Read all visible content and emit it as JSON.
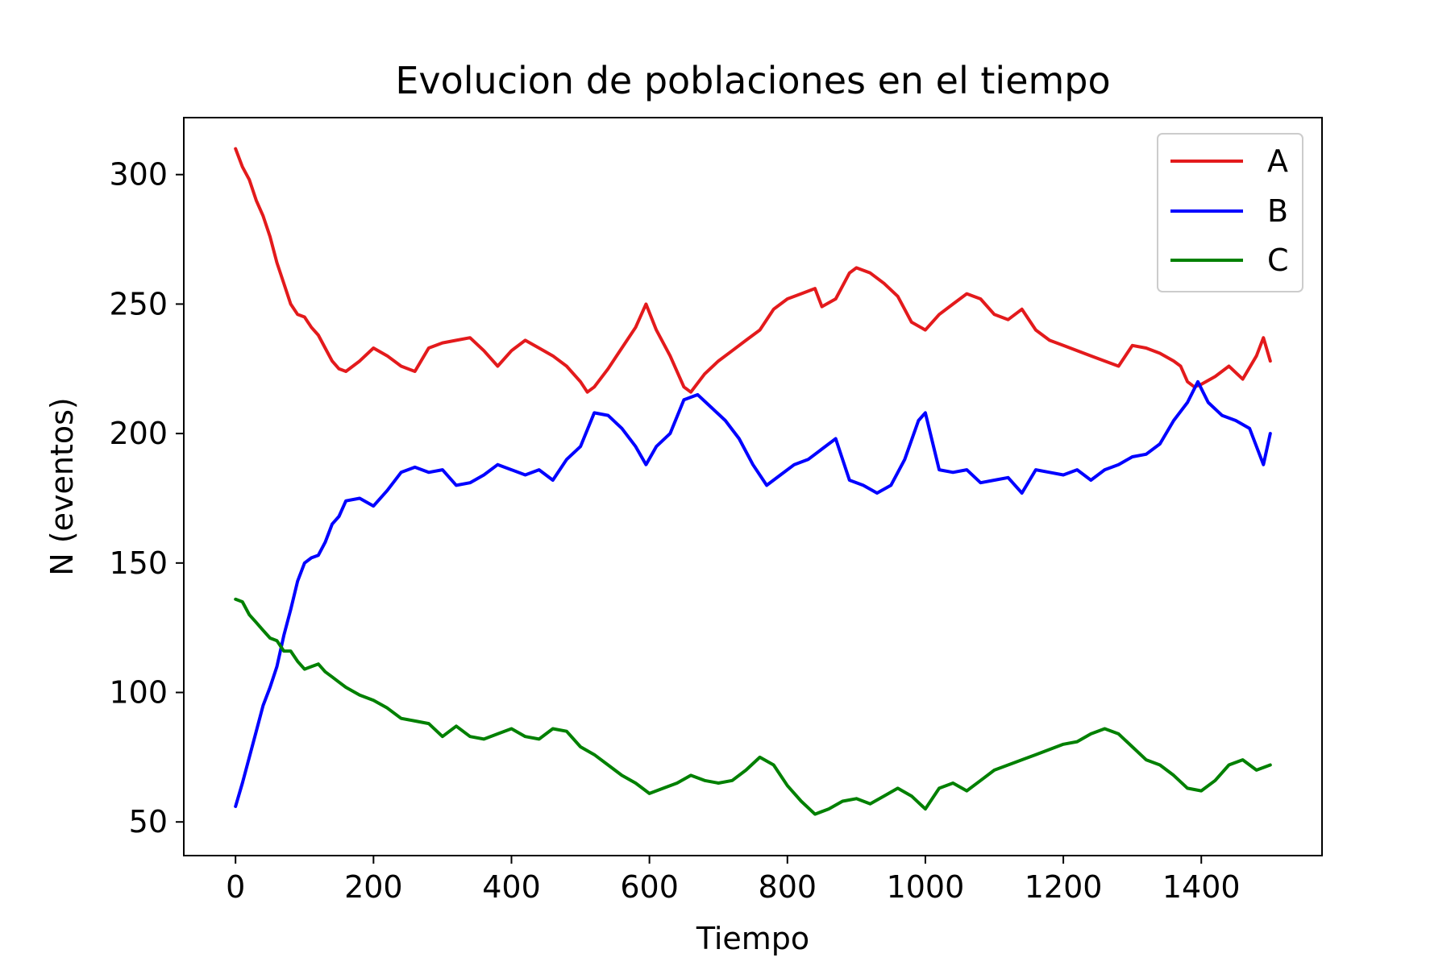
{
  "chart_data": {
    "type": "line",
    "title": "Evolucion de poblaciones en el tiempo",
    "xlabel": "Tiempo",
    "ylabel": "N (eventos)",
    "xlim": [
      -75,
      1575
    ],
    "ylim": [
      37,
      322
    ],
    "xticks": [
      0,
      200,
      400,
      600,
      800,
      1000,
      1200,
      1400
    ],
    "yticks": [
      50,
      100,
      150,
      200,
      250,
      300
    ],
    "grid": false,
    "legend_position": "top-right",
    "series": [
      {
        "name": "A",
        "color": "#e31a1c",
        "x": [
          0,
          10,
          20,
          30,
          40,
          50,
          60,
          70,
          80,
          90,
          100,
          110,
          120,
          130,
          140,
          150,
          160,
          180,
          200,
          220,
          240,
          260,
          280,
          300,
          320,
          340,
          360,
          380,
          400,
          420,
          440,
          460,
          480,
          500,
          510,
          520,
          540,
          560,
          580,
          595,
          610,
          630,
          650,
          660,
          680,
          700,
          720,
          740,
          760,
          780,
          800,
          820,
          840,
          850,
          870,
          890,
          900,
          920,
          940,
          960,
          980,
          1000,
          1020,
          1040,
          1060,
          1080,
          1100,
          1120,
          1140,
          1160,
          1180,
          1200,
          1220,
          1240,
          1260,
          1280,
          1300,
          1320,
          1340,
          1360,
          1370,
          1380,
          1390,
          1400,
          1420,
          1440,
          1460,
          1480,
          1490,
          1500
        ],
        "y": [
          310,
          303,
          298,
          290,
          284,
          276,
          266,
          258,
          250,
          246,
          245,
          241,
          238,
          233,
          228,
          225,
          224,
          228,
          233,
          230,
          226,
          224,
          233,
          235,
          236,
          237,
          232,
          226,
          232,
          236,
          233,
          230,
          226,
          220,
          216,
          218,
          225,
          233,
          241,
          250,
          240,
          230,
          218,
          216,
          223,
          228,
          232,
          236,
          240,
          248,
          252,
          254,
          256,
          249,
          252,
          262,
          264,
          262,
          258,
          253,
          243,
          240,
          246,
          250,
          254,
          252,
          246,
          244,
          248,
          240,
          236,
          234,
          232,
          230,
          228,
          226,
          234,
          233,
          231,
          228,
          226,
          220,
          218,
          219,
          222,
          226,
          221,
          230,
          237,
          228
        ]
      },
      {
        "name": "B",
        "color": "#0000ff",
        "x": [
          0,
          10,
          20,
          30,
          40,
          50,
          60,
          70,
          80,
          90,
          100,
          110,
          120,
          130,
          140,
          150,
          160,
          180,
          200,
          220,
          240,
          260,
          280,
          300,
          320,
          340,
          360,
          380,
          400,
          420,
          440,
          460,
          480,
          500,
          520,
          540,
          560,
          580,
          595,
          610,
          630,
          650,
          670,
          690,
          710,
          730,
          750,
          770,
          790,
          810,
          830,
          850,
          870,
          890,
          910,
          930,
          950,
          970,
          990,
          1000,
          1020,
          1040,
          1060,
          1080,
          1100,
          1120,
          1140,
          1160,
          1180,
          1200,
          1220,
          1240,
          1260,
          1280,
          1300,
          1320,
          1340,
          1360,
          1380,
          1395,
          1410,
          1430,
          1450,
          1470,
          1490,
          1500
        ],
        "y": [
          56,
          65,
          75,
          85,
          95,
          102,
          110,
          122,
          132,
          143,
          150,
          152,
          153,
          158,
          165,
          168,
          174,
          175,
          172,
          178,
          185,
          187,
          185,
          186,
          180,
          181,
          184,
          188,
          186,
          184,
          186,
          182,
          190,
          195,
          208,
          207,
          202,
          195,
          188,
          195,
          200,
          213,
          215,
          210,
          205,
          198,
          188,
          180,
          184,
          188,
          190,
          194,
          198,
          182,
          180,
          177,
          180,
          190,
          205,
          208,
          186,
          185,
          186,
          181,
          182,
          183,
          177,
          186,
          185,
          184,
          186,
          182,
          186,
          188,
          191,
          192,
          196,
          205,
          212,
          220,
          212,
          207,
          205,
          202,
          188,
          200
        ]
      },
      {
        "name": "C",
        "color": "#008000",
        "x": [
          0,
          10,
          20,
          30,
          40,
          50,
          60,
          70,
          80,
          90,
          100,
          110,
          120,
          130,
          140,
          150,
          160,
          180,
          200,
          220,
          240,
          260,
          280,
          300,
          320,
          340,
          360,
          380,
          400,
          420,
          440,
          460,
          480,
          500,
          520,
          540,
          560,
          580,
          600,
          620,
          640,
          660,
          680,
          700,
          720,
          740,
          760,
          780,
          800,
          820,
          840,
          860,
          880,
          900,
          920,
          940,
          960,
          980,
          1000,
          1020,
          1040,
          1060,
          1080,
          1100,
          1120,
          1140,
          1160,
          1180,
          1200,
          1220,
          1240,
          1260,
          1280,
          1300,
          1320,
          1340,
          1360,
          1380,
          1400,
          1420,
          1440,
          1460,
          1480,
          1500
        ],
        "y": [
          136,
          135,
          130,
          127,
          124,
          121,
          120,
          116,
          116,
          112,
          109,
          110,
          111,
          108,
          106,
          104,
          102,
          99,
          97,
          94,
          90,
          89,
          88,
          83,
          87,
          83,
          82,
          84,
          86,
          83,
          82,
          86,
          85,
          79,
          76,
          72,
          68,
          65,
          61,
          63,
          65,
          68,
          66,
          65,
          66,
          70,
          75,
          72,
          64,
          58,
          53,
          55,
          58,
          59,
          57,
          60,
          63,
          60,
          55,
          63,
          65,
          62,
          66,
          70,
          72,
          74,
          76,
          78,
          80,
          81,
          84,
          86,
          84,
          79,
          74,
          72,
          68,
          63,
          62,
          66,
          72,
          74,
          70,
          72
        ]
      }
    ]
  }
}
